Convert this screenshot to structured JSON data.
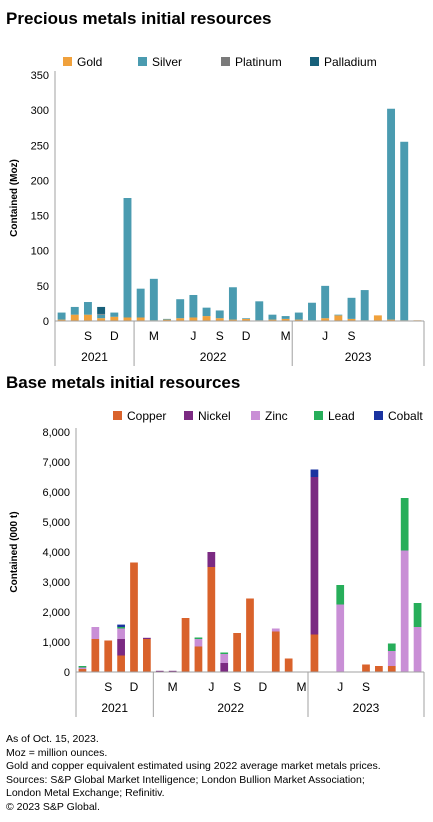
{
  "charts": [
    {
      "title": "Precious metals initial resources",
      "ylabel": "Contained (Moz)",
      "yticks": [
        "0",
        "50",
        "100",
        "150",
        "200",
        "250",
        "300",
        "350"
      ],
      "ymax": 350
    },
    {
      "title": "Base metals initial resources",
      "ylabel": "Contained (000 t)",
      "yticks": [
        "0",
        "1,000",
        "2,000",
        "3,000",
        "4,000",
        "5,000",
        "6,000",
        "7,000",
        "8,000"
      ],
      "ymax": 8000
    }
  ],
  "notes": [
    "As of Oct. 15, 2023.",
    "Moz = million ounces.",
    "Gold and copper equivalent estimated using 2022 average market metals prices.",
    "Sources: S&P Global Market Intelligence; London Bullion Market Association;",
    "London Metal Exchange; Refinitiv.",
    "© 2023 S&P Global."
  ],
  "chart_data": [
    {
      "type": "bar",
      "stacked": true,
      "title": "Precious metals initial resources",
      "xlabel": "",
      "ylabel": "Contained (Moz)",
      "ylim": [
        0,
        350
      ],
      "legend_position": "top",
      "categories": [
        "2021-Jul",
        "2021-Aug",
        "2021-Sep",
        "2021-Oct",
        "2021-Nov",
        "2021-Dec",
        "2022-Jan",
        "2022-Feb",
        "2022-Mar",
        "2022-Apr",
        "2022-May",
        "2022-Jun",
        "2022-Jul",
        "2022-Aug",
        "2022-Sep",
        "2022-Oct",
        "2022-Nov",
        "2022-Dec",
        "2023-Jan",
        "2023-Feb",
        "2023-Mar",
        "2023-Apr",
        "2023-May",
        "2023-Jun",
        "2023-Jul",
        "2023-Aug",
        "2023-Sep",
        "2023-Oct"
      ],
      "tick_labels": [
        "",
        "S",
        "",
        "D",
        "",
        "",
        "M",
        "",
        "J",
        "",
        "S",
        "",
        "D",
        "",
        "",
        "M",
        "",
        "J",
        "",
        "S",
        ""
      ],
      "tick_labels_full": [
        "",
        "",
        "S",
        "",
        "D",
        "",
        "",
        "M",
        "",
        "",
        "J",
        "",
        "S",
        "",
        "D",
        "",
        "",
        "M",
        "",
        "",
        "J",
        "",
        "S",
        ""
      ],
      "years": [
        {
          "label": "2021",
          "from": 0,
          "to": 6
        },
        {
          "label": "2022",
          "from": 6,
          "to": 18
        },
        {
          "label": "2023",
          "from": 18,
          "to": 28
        }
      ],
      "series": [
        {
          "name": "Gold",
          "color": "#f0a13c",
          "values": [
            2,
            9,
            9,
            4,
            6,
            5,
            5,
            1,
            2,
            4,
            5,
            7,
            4,
            2,
            3,
            1,
            2,
            3,
            2,
            1,
            4,
            8,
            3,
            1,
            8,
            2,
            1,
            1
          ]
        },
        {
          "name": "Silver",
          "color": "#4a9bb0",
          "values": [
            10,
            11,
            18,
            5,
            6,
            170,
            41,
            59,
            1,
            27,
            32,
            12,
            11,
            46,
            1,
            27,
            7,
            4,
            10,
            25,
            46,
            1,
            30,
            43,
            0,
            300,
            254,
            0
          ]
        },
        {
          "name": "Platinum",
          "color": "#7a7a7a",
          "values": [
            0,
            0,
            0,
            1,
            0,
            0,
            0,
            0,
            0,
            0,
            0,
            0,
            0,
            0,
            0,
            0,
            0,
            0,
            0,
            0,
            0,
            0,
            0,
            0,
            0,
            0,
            0,
            0
          ]
        },
        {
          "name": "Palladium",
          "color": "#17607a",
          "values": [
            0,
            0,
            0,
            10,
            0,
            0,
            0,
            0,
            0,
            0,
            0,
            0,
            0,
            0,
            0,
            0,
            0,
            0,
            0,
            0,
            0,
            0,
            0,
            0,
            0,
            0,
            0,
            0
          ]
        }
      ]
    },
    {
      "type": "bar",
      "stacked": true,
      "title": "Base metals initial resources",
      "xlabel": "",
      "ylabel": "Contained (000 t)",
      "ylim": [
        0,
        8000
      ],
      "legend_position": "top",
      "categories": [
        "2021-Jul",
        "2021-Aug",
        "2021-Sep",
        "2021-Oct",
        "2021-Nov",
        "2021-Dec",
        "2022-Jan",
        "2022-Feb",
        "2022-Mar",
        "2022-Apr",
        "2022-May",
        "2022-Jun",
        "2022-Jul",
        "2022-Aug",
        "2022-Sep",
        "2022-Oct",
        "2022-Nov",
        "2022-Dec",
        "2023-Jan",
        "2023-Feb",
        "2023-Mar",
        "2023-Apr",
        "2023-May",
        "2023-Jun",
        "2023-Jul",
        "2023-Aug",
        "2023-Sep"
      ],
      "tick_labels_full": [
        "",
        "",
        "S",
        "",
        "D",
        "",
        "",
        "M",
        "",
        "",
        "J",
        "",
        "S",
        "",
        "D",
        "",
        "",
        "M",
        "",
        "",
        "J",
        "",
        "S"
      ],
      "years": [
        {
          "label": "2021",
          "from": 0,
          "to": 6
        },
        {
          "label": "2022",
          "from": 6,
          "to": 18
        },
        {
          "label": "2023",
          "from": 18,
          "to": 27
        }
      ],
      "series": [
        {
          "name": "Copper",
          "color": "#d9622b",
          "values": [
            100,
            1100,
            1050,
            550,
            3650,
            1100,
            0,
            0,
            1800,
            850,
            3500,
            0,
            1300,
            2450,
            0,
            1350,
            450,
            0,
            1250,
            0,
            0,
            0,
            250,
            200,
            200,
            0,
            0
          ]
        },
        {
          "name": "Nickel",
          "color": "#7b2a82",
          "values": [
            0,
            0,
            0,
            550,
            0,
            40,
            40,
            40,
            0,
            0,
            500,
            300,
            0,
            0,
            0,
            0,
            0,
            0,
            5250,
            0,
            0,
            0,
            0,
            0,
            0,
            0,
            0
          ]
        },
        {
          "name": "Zinc",
          "color": "#c98fd6",
          "values": [
            50,
            400,
            0,
            350,
            0,
            0,
            0,
            0,
            0,
            250,
            0,
            300,
            0,
            0,
            0,
            100,
            0,
            0,
            0,
            0,
            2250,
            0,
            0,
            0,
            500,
            4050,
            1500
          ]
        },
        {
          "name": "Lead",
          "color": "#27ae5a",
          "values": [
            50,
            0,
            0,
            50,
            0,
            0,
            0,
            0,
            0,
            50,
            0,
            50,
            0,
            0,
            0,
            0,
            0,
            0,
            0,
            0,
            650,
            0,
            0,
            0,
            250,
            1750,
            800
          ]
        },
        {
          "name": "Cobalt",
          "color": "#1a33a0",
          "values": [
            0,
            0,
            0,
            80,
            0,
            0,
            0,
            0,
            0,
            0,
            0,
            0,
            0,
            0,
            0,
            0,
            0,
            0,
            250,
            0,
            0,
            0,
            0,
            0,
            0,
            0,
            0
          ]
        }
      ]
    }
  ]
}
